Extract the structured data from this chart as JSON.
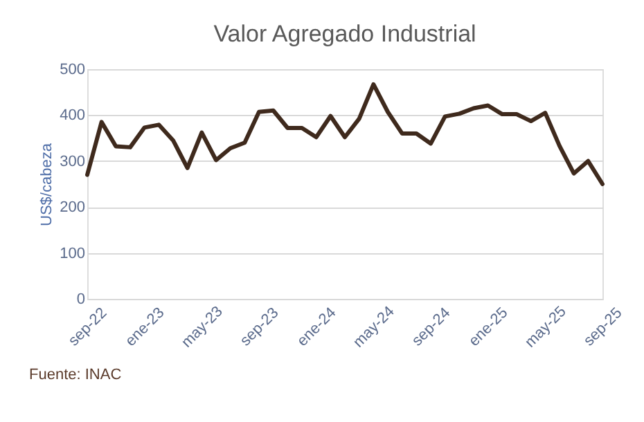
{
  "chart_data": {
    "type": "line",
    "title": "Valor Agregado Industrial",
    "ylabel": "US$/cabeza",
    "categories": [
      "sep-22",
      null,
      null,
      null,
      "ene-23",
      null,
      null,
      null,
      "may-23",
      null,
      null,
      null,
      "sep-23",
      null,
      null,
      null,
      "ene-24",
      null,
      null,
      null,
      "may-24",
      null,
      null,
      null,
      "sep-24",
      null,
      null,
      null,
      "ene-25",
      null,
      null,
      null,
      "may-25",
      null,
      null,
      null,
      "sep-25"
    ],
    "series": [
      {
        "color": "#3f2a1d",
        "values": [
          270,
          385,
          332,
          330,
          373,
          379,
          345,
          285,
          362,
          302,
          328,
          340,
          407,
          410,
          372,
          372,
          352,
          398,
          352,
          392,
          467,
          407,
          360,
          360,
          338,
          397,
          403,
          415,
          421,
          402,
          402,
          387,
          405,
          333,
          273,
          300,
          250
        ]
      }
    ],
    "ylim": [
      0,
      500
    ],
    "yticks": [
      0,
      100,
      200,
      300,
      400,
      500
    ],
    "grid": "y",
    "legend": false,
    "marker": "none",
    "line_style": "solid",
    "annotations": [
      "Fuente:  INAC"
    ]
  }
}
